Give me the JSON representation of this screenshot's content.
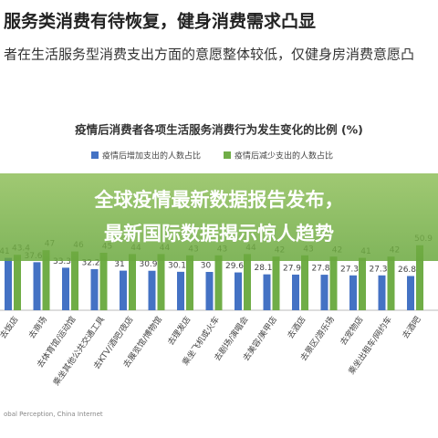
{
  "chart_data": {
    "type": "bar",
    "heading": "服务类消费有待恢复，健身消费需求凸显",
    "subheading": "者在生活服务型消费支出方面的意愿整体较低，仅健身房消费意愿凸",
    "title": "疫情后消费者各项生活服务消费行为发生变化的比例 (%)",
    "overlay": [
      "全球疫情最新数据报告发布，",
      "最新国际数据揭示惊人趋势"
    ],
    "source": "obal Perception, China Internet",
    "categories": [
      "去饭店",
      "去商场",
      "去体育馆/运动馆",
      "乘坐其他公共交通工具",
      "去KTV/酒吧/夜店",
      "去展览馆/博物馆",
      "去理发店",
      "乘坐飞机或火车",
      "去剧场/演唱会",
      "去美容/美甲店",
      "去酒店",
      "去景区/游乐场",
      "去宠物店",
      "乘坐出租车/网约车",
      "去酒吧"
    ],
    "series": [
      {
        "name": "疫情后增加支出的人数占比",
        "color": "#4472c4",
        "values": [
          41,
          37.6,
          33.3,
          32.2,
          31.0,
          30.9,
          30.1,
          30.0,
          29.6,
          28.1,
          27.9,
          27.8,
          27.3,
          27.3,
          26.8
        ]
      },
      {
        "name": "疫情后减少支出的人数占比",
        "color": "#70ad47",
        "values": [
          43.4,
          47,
          46,
          45,
          44,
          44,
          43,
          43,
          44,
          42,
          43,
          42,
          41,
          42,
          50.9
        ]
      }
    ],
    "ylim": [
      0,
      100
    ]
  }
}
